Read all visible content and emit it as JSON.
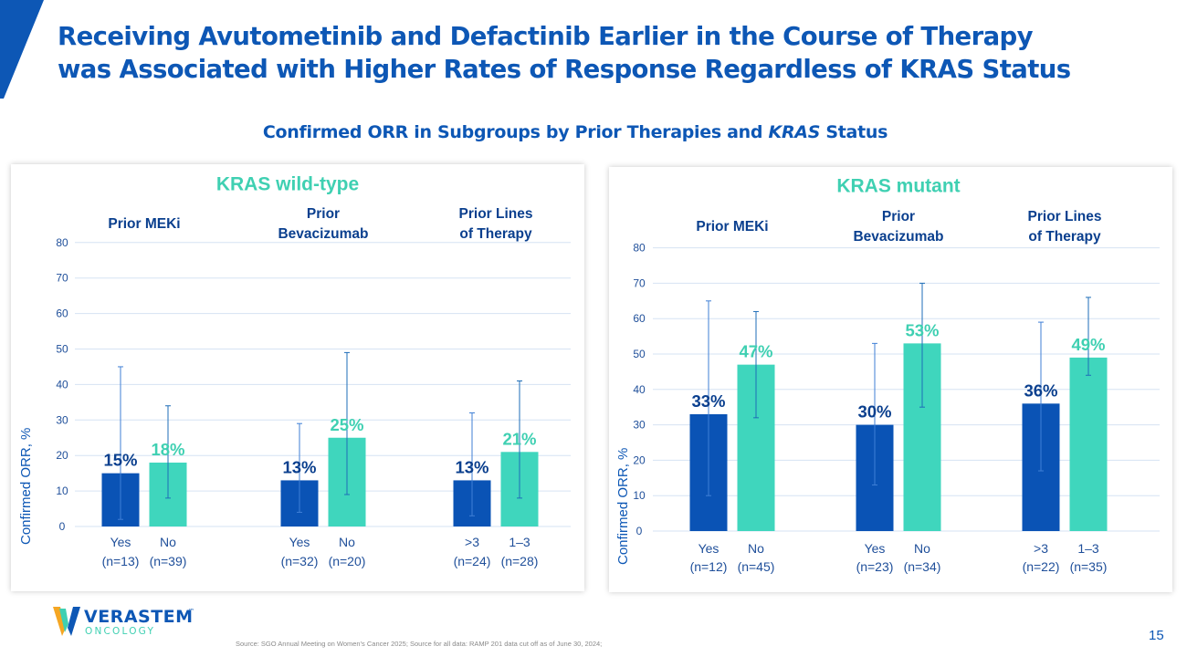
{
  "header": {
    "title_line1": "Receiving Avutometinib and Defactinib Earlier in the Course of Therapy",
    "title_line2": "was Associated with Higher Rates of Response Regardless of KRAS Status"
  },
  "chart_title": "Confirmed ORR in Subgroups by Prior Therapies and KRAS Status",
  "colors": {
    "title_blue": "#0d57b5",
    "dark_bar": "#0a53b5",
    "light_bar": "#3fd6bd",
    "panel_title": "#3fd0b2",
    "grid": "#d6e3f3"
  },
  "chart_data": [
    {
      "type": "bar",
      "title": "KRAS wild-type",
      "ylabel": "Confirmed ORR, %",
      "ylim": [
        0,
        80
      ],
      "yticks": [
        0,
        10,
        20,
        30,
        40,
        50,
        60,
        70,
        80
      ],
      "groups": [
        {
          "header_lines": [
            "Prior MEKi"
          ],
          "bars": [
            {
              "label": "Yes",
              "n": "(n=13)",
              "value": 15,
              "value_label": "15%",
              "ci": [
                2,
                45
              ],
              "series": "dark"
            },
            {
              "label": "No",
              "n": "(n=39)",
              "value": 18,
              "value_label": "18%",
              "ci": [
                8,
                34
              ],
              "series": "light"
            }
          ]
        },
        {
          "header_lines": [
            "Prior",
            "Bevacizumab"
          ],
          "bars": [
            {
              "label": "Yes",
              "n": "(n=32)",
              "value": 13,
              "value_label": "13%",
              "ci": [
                4,
                29
              ],
              "series": "dark"
            },
            {
              "label": "No",
              "n": "(n=20)",
              "value": 25,
              "value_label": "25%",
              "ci": [
                9,
                49
              ],
              "series": "light"
            }
          ]
        },
        {
          "header_lines": [
            "Prior Lines",
            "of Therapy"
          ],
          "bars": [
            {
              "label": ">3",
              "n": "(n=24)",
              "value": 13,
              "value_label": "13%",
              "ci": [
                3,
                32
              ],
              "series": "dark"
            },
            {
              "label": "1–3",
              "n": "(n=28)",
              "value": 21,
              "value_label": "21%",
              "ci": [
                8,
                41
              ],
              "series": "light"
            }
          ]
        }
      ]
    },
    {
      "type": "bar",
      "title": "KRAS mutant",
      "ylabel": "Confirmed ORR, %",
      "ylim": [
        0,
        80
      ],
      "yticks": [
        0,
        10,
        20,
        30,
        40,
        50,
        60,
        70,
        80
      ],
      "groups": [
        {
          "header_lines": [
            "Prior MEKi"
          ],
          "bars": [
            {
              "label": "Yes",
              "n": "(n=12)",
              "value": 33,
              "value_label": "33%",
              "ci": [
                10,
                65
              ],
              "series": "dark"
            },
            {
              "label": "No",
              "n": "(n=45)",
              "value": 47,
              "value_label": "47%",
              "ci": [
                32,
                62
              ],
              "series": "light"
            }
          ]
        },
        {
          "header_lines": [
            "Prior",
            "Bevacizumab"
          ],
          "bars": [
            {
              "label": "Yes",
              "n": "(n=23)",
              "value": 30,
              "value_label": "30%",
              "ci": [
                13,
                53
              ],
              "series": "dark"
            },
            {
              "label": "No",
              "n": "(n=34)",
              "value": 53,
              "value_label": "53%",
              "ci": [
                35,
                70
              ],
              "series": "light"
            }
          ]
        },
        {
          "header_lines": [
            "Prior Lines",
            "of Therapy"
          ],
          "bars": [
            {
              "label": ">3",
              "n": "(n=22)",
              "value": 36,
              "value_label": "36%",
              "ci": [
                17,
                59
              ],
              "series": "dark"
            },
            {
              "label": "1–3",
              "n": "(n=35)",
              "value": 49,
              "value_label": "49%",
              "ci": [
                44,
                66
              ],
              "series": "light"
            }
          ]
        }
      ]
    }
  ],
  "logo": {
    "name": "VERASTEM",
    "trademark": "™",
    "sub": "ONCOLOGY"
  },
  "footer": {
    "source": "Source: SGO Annual Meeting on Women's Cancer 2025;  Source for all data: RAMP 201 data cut off as of June 30, 2024;",
    "page_number": "15"
  }
}
